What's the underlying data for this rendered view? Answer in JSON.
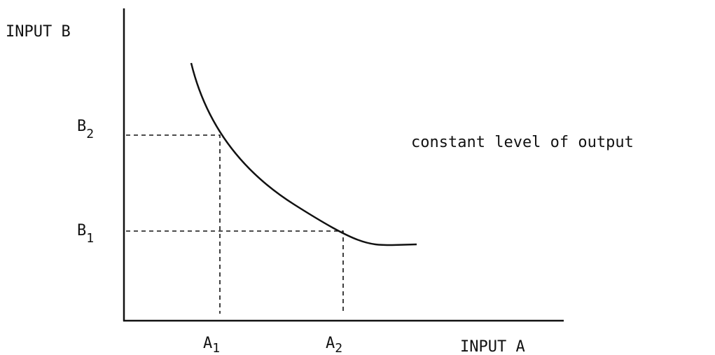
{
  "axes": {
    "y_label": "INPUT B",
    "x_label": "INPUT A"
  },
  "y_levels": [
    {
      "letter": "B",
      "sub": "2"
    },
    {
      "letter": "B",
      "sub": "1"
    }
  ],
  "x_levels": [
    {
      "letter": "A",
      "sub": "1"
    },
    {
      "letter": "A",
      "sub": "2"
    }
  ],
  "curve_label": "constant level of output"
}
